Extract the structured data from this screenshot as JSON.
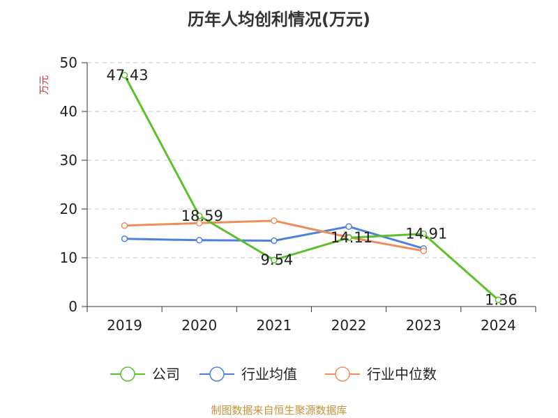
{
  "chart_data": {
    "type": "line",
    "title": "历年人均创利情况(万元)",
    "ylabel": "万元",
    "xlabel": "",
    "categories": [
      "2019",
      "2020",
      "2021",
      "2022",
      "2023",
      "2024"
    ],
    "ylim": [
      0,
      50
    ],
    "yticks": [
      0,
      10,
      20,
      30,
      40,
      50
    ],
    "grid": true,
    "legend_position": "bottom",
    "series": [
      {
        "name": "公司",
        "color": "#5cc02a",
        "values": [
          47.43,
          18.59,
          9.54,
          14.11,
          14.91,
          1.36
        ],
        "labels": [
          "47.43",
          "18.59",
          "9.54",
          "14.11",
          "14.91",
          "1.36"
        ]
      },
      {
        "name": "行业均值",
        "color": "#4f7fd8",
        "values": [
          13.9,
          13.6,
          13.5,
          16.4,
          11.9,
          null
        ]
      },
      {
        "name": "行业中位数",
        "color": "#f08c5a",
        "values": [
          16.6,
          17.1,
          17.6,
          14.2,
          11.4,
          null
        ]
      }
    ]
  },
  "source": "制图数据来自恒生聚源数据库",
  "colors": {
    "ylabel": "#e03030",
    "grid": "#c8c8c8",
    "axis": "#333333"
  }
}
